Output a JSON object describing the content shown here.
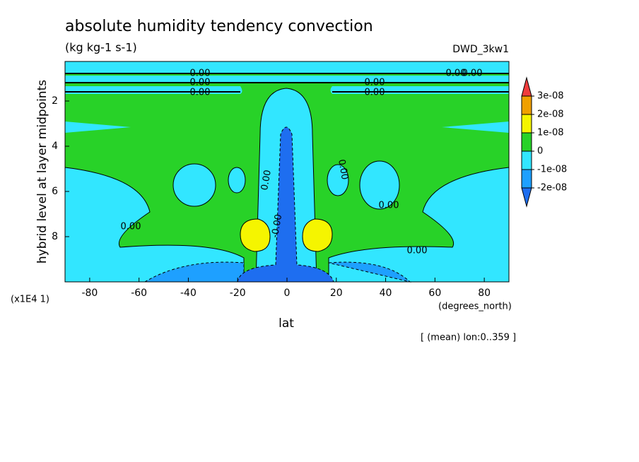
{
  "chart_data": {
    "type": "contour",
    "title": "absolute humidity tendency convection",
    "subtitle": "(kg kg-1 s-1)",
    "experiment": "DWD_3kw1",
    "y_label": "hybrid level at layer midpoints",
    "y_scale_note": "(x1E4 1)",
    "x_label": "lat",
    "x_units": "(degrees_north)",
    "footnote": "[ (mean) lon:0..359 ]",
    "xlim": [
      -90,
      90
    ],
    "xticks": [
      -80,
      -60,
      -40,
      -20,
      0,
      20,
      40,
      60,
      80
    ],
    "ylim": [
      10,
      0.25
    ],
    "yticks": [
      2,
      4,
      6,
      8
    ],
    "colorbar": {
      "colors": [
        "#f03c3c",
        "#f0a000",
        "#f5f500",
        "#28d228",
        "#32e6ff",
        "#1ea0ff",
        "#1e6ef0"
      ],
      "levels": [
        {
          "value": 3e-08,
          "label": "3e-08"
        },
        {
          "value": 2e-08,
          "label": "2e-08"
        },
        {
          "value": 1e-08,
          "label": "1e-08"
        },
        0,
        {
          "value": -1e-08,
          "label": "-1e-08"
        },
        {
          "value": -2e-08,
          "label": "-2e-08"
        }
      ]
    },
    "contour_labels": [
      "0.00",
      "0.00",
      "0.00",
      "0.00",
      "0.00",
      "0.00",
      "0.00",
      "0.00",
      "0.00",
      "0.00",
      "0.00",
      "0.00",
      "-0.00"
    ]
  }
}
